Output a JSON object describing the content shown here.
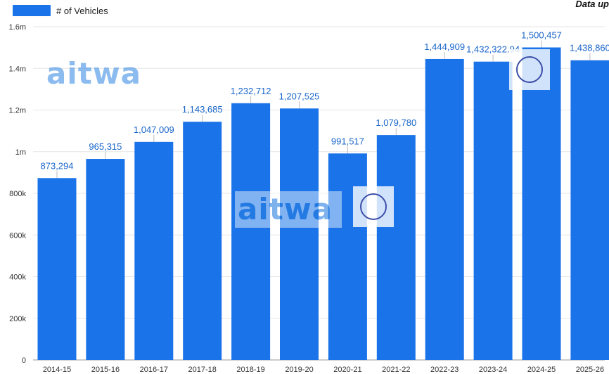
{
  "legend": {
    "label": "# of Vehicles",
    "color": "#1a73e8"
  },
  "note": "Data up",
  "watermark": {
    "logo_text": "aitwa"
  },
  "chart_data": {
    "type": "bar",
    "categories": [
      "2014-15",
      "2015-16",
      "2016-17",
      "2017-18",
      "2018-19",
      "2019-20",
      "2020-21",
      "2021-22",
      "2022-23",
      "2023-24",
      "2024-25",
      "2025-26"
    ],
    "series": [
      {
        "name": "# of Vehicles",
        "values": [
          873294,
          965315,
          1047009,
          1143685,
          1232712,
          1207525,
          991517,
          1079780,
          1444909,
          1432322.94,
          1500457,
          1438860
        ],
        "data_labels": [
          "873,294",
          "965,315",
          "1,047,009",
          "1,143,685",
          "1,232,712",
          "1,207,525",
          "991,517",
          "1,079,780",
          "1,444,909",
          "1,432,322.94",
          "1,500,457",
          "1,438,860"
        ]
      }
    ],
    "y_ticks": [
      {
        "value": 0,
        "label": "0"
      },
      {
        "value": 200000,
        "label": "200k"
      },
      {
        "value": 400000,
        "label": "400k"
      },
      {
        "value": 600000,
        "label": "600k"
      },
      {
        "value": 800000,
        "label": "800k"
      },
      {
        "value": 1000000,
        "label": "1m"
      },
      {
        "value": 1200000,
        "label": "1.2m"
      },
      {
        "value": 1400000,
        "label": "1.4m"
      },
      {
        "value": 1600000,
        "label": "1.6m"
      }
    ],
    "ylim": [
      0,
      1600000
    ],
    "grid": true,
    "legend_position": "top-left",
    "colors": {
      "bar": "#1a73e8",
      "label": "#1a66c9",
      "grid": "#e6e6e6"
    }
  }
}
